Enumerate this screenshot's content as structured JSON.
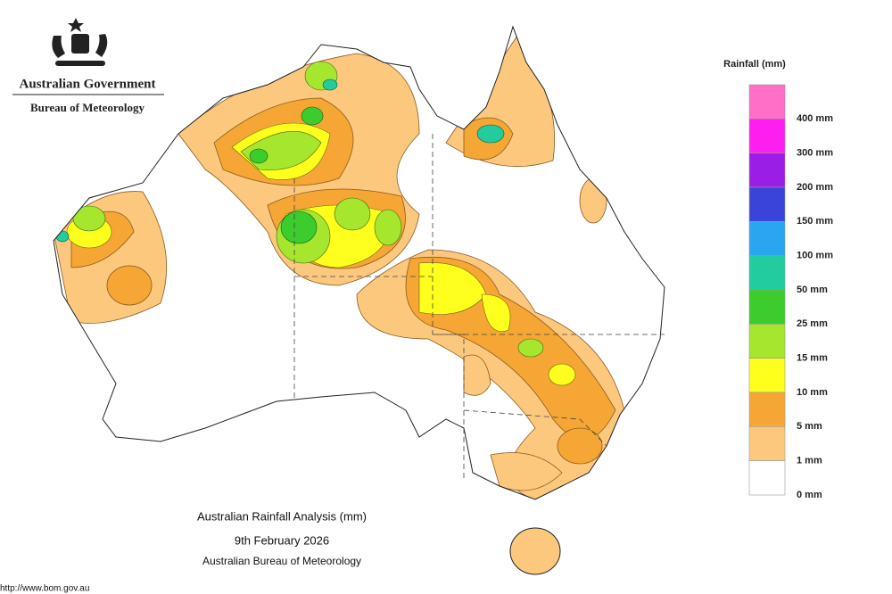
{
  "header": {
    "agency": "Australian Government",
    "bureau": "Bureau of Meteorology"
  },
  "legend": {
    "title": "Rainfall (mm)",
    "labels": [
      "400 mm",
      "300 mm",
      "200 mm",
      "150 mm",
      "100 mm",
      "50 mm",
      "25 mm",
      "15 mm",
      "10 mm",
      "5 mm",
      "1 mm",
      "0 mm"
    ],
    "colors": [
      "#ff6fc8",
      "#ff1ef0",
      "#9a1ee6",
      "#3a44d8",
      "#2aa6f0",
      "#22cc9e",
      "#3ccc2e",
      "#a6e62e",
      "#ffff1e",
      "#f5a634",
      "#fcc87e",
      "#ffffff"
    ]
  },
  "caption": {
    "title": "Australian Rainfall Analysis (mm)",
    "date": "9th February 2026",
    "source": "Australian Bureau of Meteorology"
  },
  "url": "http://www.bom.gov.au"
}
